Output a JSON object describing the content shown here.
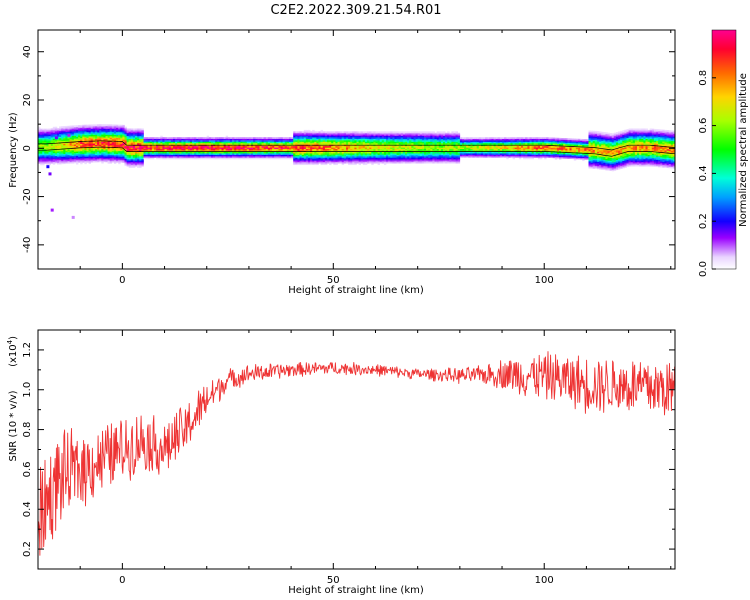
{
  "figure_title": "C2E2.2022.309.21.54.R01",
  "colorbar": {
    "label": "Normalized spectral amplitude",
    "ticks": [
      "0.0",
      "0.2",
      "0.4",
      "0.6",
      "0.8"
    ],
    "tick_values": [
      0.0,
      0.2,
      0.4,
      0.6,
      0.8
    ],
    "range": [
      0,
      1
    ]
  },
  "chart_data": [
    {
      "type": "heatmap",
      "xlabel": "Height of straight line (km)",
      "ylabel": "Frequency (Hz)",
      "xlim": [
        -20,
        131
      ],
      "ylim": [
        -50,
        49
      ],
      "x_ticks": [
        0,
        50,
        100
      ],
      "x_tick_labels": [
        "0",
        "50",
        "100"
      ],
      "y_ticks": [
        -40,
        -20,
        0,
        20,
        40
      ],
      "y_tick_labels": [
        "-40",
        "-20",
        "0",
        "20",
        "40"
      ],
      "ridge_frequency_hz": [
        [
          -18,
          0.5
        ],
        [
          -10,
          1.5
        ],
        [
          -5,
          1.8
        ],
        [
          0,
          1.5
        ],
        [
          1,
          0
        ],
        [
          40,
          0
        ],
        [
          70,
          0
        ],
        [
          100,
          0
        ],
        [
          112,
          -1
        ],
        [
          116,
          -2
        ],
        [
          120,
          0
        ],
        [
          125,
          0
        ],
        [
          131,
          -1
        ]
      ],
      "ridge_amplitude": [
        [
          -18,
          0.6
        ],
        [
          -10,
          0.85
        ],
        [
          0,
          0.9
        ],
        [
          20,
          0.95
        ],
        [
          45,
          0.85
        ],
        [
          60,
          0.7
        ],
        [
          75,
          0.6
        ],
        [
          90,
          0.7
        ],
        [
          100,
          0.85
        ],
        [
          115,
          0.75
        ],
        [
          131,
          0.8
        ]
      ]
    },
    {
      "type": "line",
      "xlabel": "Height of straight line (km)",
      "ylabel": "SNR (10 * v/v)",
      "multiplier_label": "(x10",
      "multiplier_exp": "4",
      "xlim": [
        -20,
        131
      ],
      "ylim": [
        0.1,
        1.3
      ],
      "x_ticks": [
        0,
        50,
        100
      ],
      "x_tick_labels": [
        "0",
        "50",
        "100"
      ],
      "y_ticks": [
        0.2,
        0.4,
        0.6,
        0.8,
        1.0,
        1.2
      ],
      "y_tick_labels": [
        "0.2",
        "0.4",
        "0.6",
        "0.8",
        "1.0",
        "1.2"
      ],
      "series": [
        {
          "color": "#ee3333",
          "trend": [
            [
              -20,
              0.35
            ],
            [
              -15,
              0.55
            ],
            [
              -10,
              0.6
            ],
            [
              -5,
              0.65
            ],
            [
              0,
              0.7
            ],
            [
              5,
              0.75
            ],
            [
              10,
              0.7
            ],
            [
              15,
              0.8
            ],
            [
              20,
              0.95
            ],
            [
              25,
              1.05
            ],
            [
              30,
              1.08
            ],
            [
              40,
              1.1
            ],
            [
              50,
              1.11
            ],
            [
              60,
              1.1
            ],
            [
              70,
              1.08
            ],
            [
              80,
              1.07
            ],
            [
              90,
              1.08
            ],
            [
              100,
              1.07
            ],
            [
              110,
              1.03
            ],
            [
              120,
              1.02
            ],
            [
              131,
              1.0
            ]
          ],
          "noise_amplitude": [
            [
              -20,
              0.3
            ],
            [
              -10,
              0.22
            ],
            [
              0,
              0.18
            ],
            [
              15,
              0.15
            ],
            [
              25,
              0.06
            ],
            [
              40,
              0.04
            ],
            [
              70,
              0.03
            ],
            [
              85,
              0.05
            ],
            [
              95,
              0.12
            ],
            [
              110,
              0.16
            ],
            [
              131,
              0.18
            ]
          ]
        }
      ]
    }
  ]
}
